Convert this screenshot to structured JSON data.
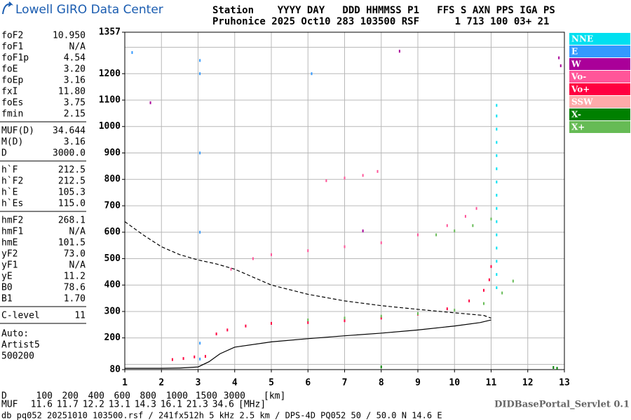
{
  "header": {
    "title": "Lowell GIRO Data Center",
    "line1": "Station    YYYY DAY   DDD HHMMSS P1   FFS S AXN PPS IGA PS",
    "line2": "Pruhonice 2025 Oct10 283 103500 RSF      1 713 100 03+ 21"
  },
  "params": {
    "groups": [
      {
        "rows": [
          [
            "foF2",
            "10.950"
          ],
          [
            "foF1",
            "N/A"
          ],
          [
            "foF1p",
            "4.54"
          ],
          [
            "foE",
            "3.20"
          ],
          [
            "foEp",
            "3.16"
          ],
          [
            "fxI",
            "11.80"
          ],
          [
            "foEs",
            "3.75"
          ],
          [
            "fmin",
            "2.15"
          ]
        ]
      },
      {
        "rows": [
          [
            "MUF(D)",
            "34.644"
          ],
          [
            "M(D)",
            "3.16"
          ],
          [
            "D",
            "3000.0"
          ]
        ]
      },
      {
        "rows": [
          [
            "h`F",
            "212.5"
          ],
          [
            "h`F2",
            "212.5"
          ],
          [
            "h`E",
            "105.3"
          ],
          [
            "h`Es",
            "115.0"
          ]
        ]
      },
      {
        "rows": [
          [
            "hmF2",
            "268.1"
          ],
          [
            "hmF1",
            "N/A"
          ],
          [
            "hmE",
            "101.5"
          ],
          [
            "yF2",
            "73.0"
          ],
          [
            "yF1",
            "N/A"
          ],
          [
            "yE",
            "11.2"
          ],
          [
            "B0",
            "78.6"
          ],
          [
            "B1",
            "1.70"
          ]
        ]
      },
      {
        "rows": [
          [
            "C-level",
            "11"
          ]
        ]
      }
    ],
    "auto": [
      "Auto:",
      "Artist5",
      "500200"
    ]
  },
  "distance_table": {
    "d_row": {
      "label": "D",
      "values": [
        "100",
        "200",
        "400",
        "600",
        "800",
        "1000",
        "1500",
        "3000"
      ],
      "unit": "[km]"
    },
    "muf_row": {
      "label": "MUF",
      "values": [
        "11.6",
        "11.7",
        "12.2",
        "13.1",
        "14.3",
        "16.1",
        "21.3",
        "34.6"
      ],
      "unit": "[MHz]"
    }
  },
  "servlet": "DIDBasePortal_Servlet 0.1",
  "footer": "db pq052 20251010 103500.rsf / 241fx512h 5 kHz 2.5 km / DPS-4D PQ052 50 / 50.0 N 14.6 E",
  "chart_data": {
    "type": "scatter",
    "xlim": [
      1,
      13
    ],
    "xticks": [
      1,
      2,
      3,
      4,
      5,
      6,
      7,
      8,
      9,
      10,
      11,
      12,
      13
    ],
    "ylim": [
      80,
      1357
    ],
    "yticks": [
      80,
      200,
      300,
      400,
      500,
      600,
      700,
      800,
      900,
      1000,
      1100,
      1200,
      1357
    ],
    "ygrid": [
      100,
      200,
      300,
      400,
      500,
      600,
      700,
      800,
      900,
      1000,
      1100,
      1200,
      1300
    ],
    "grid": true,
    "series": [
      {
        "name": "NNE",
        "color": "#00e0f0",
        "x": [
          11.15,
          11.15,
          11.15,
          11.15,
          11.15,
          11.15,
          11.15,
          11.15,
          11.15,
          11.15,
          11.15,
          11.15,
          11.15,
          11.15,
          11.15
        ],
        "values": [
          390,
          440,
          490,
          540,
          590,
          640,
          690,
          740,
          790,
          840,
          890,
          940,
          990,
          1040,
          1080
        ]
      },
      {
        "name": "E",
        "color": "#3399ff",
        "x": [
          3.05,
          3.05,
          3.05,
          3.05,
          3.05,
          3.05,
          1.2,
          6.1
        ],
        "values": [
          120,
          180,
          600,
          900,
          1200,
          1250,
          1280,
          1200
        ]
      },
      {
        "name": "W",
        "color": "#aa0099",
        "x": [
          1.7,
          12.85,
          12.9,
          8.5,
          7.5
        ],
        "values": [
          1090,
          1260,
          1230,
          1285,
          605
        ]
      },
      {
        "name": "Vo-",
        "color": "#ff5599",
        "x": [
          3.9,
          4.5,
          5,
          6,
          7,
          8,
          9,
          9.8,
          10.3,
          10.6,
          6.5,
          7,
          7.5,
          7.9
        ],
        "values": [
          460,
          500,
          515,
          530,
          545,
          560,
          590,
          625,
          660,
          690,
          795,
          805,
          815,
          830
        ]
      },
      {
        "name": "Vo+",
        "color": "#ff0040",
        "x": [
          2.3,
          2.6,
          2.9,
          3.2,
          3.5,
          3.8,
          4.3,
          5,
          6,
          7,
          8,
          9,
          9.8,
          10.4,
          10.8,
          10.95,
          11
        ],
        "values": [
          118,
          122,
          128,
          130,
          215,
          230,
          245,
          255,
          258,
          265,
          275,
          290,
          310,
          340,
          380,
          420,
          470
        ]
      },
      {
        "name": "SSW",
        "color": "#ffaaaa",
        "x": [],
        "values": []
      },
      {
        "name": "X-",
        "color": "#008000",
        "x": [
          12.8,
          12.7,
          8.0
        ],
        "values": [
          85,
          88,
          90
        ]
      },
      {
        "name": "X+",
        "color": "#66bb55",
        "x": [
          6,
          7,
          8,
          9,
          10,
          10.8,
          11.3,
          11.6,
          9.5,
          10,
          10.5,
          11
        ],
        "values": [
          268,
          275,
          282,
          292,
          305,
          330,
          370,
          415,
          590,
          605,
          625,
          650
        ]
      }
    ],
    "profiles": [
      {
        "color": "#000000",
        "dashed": false,
        "x": [
          1,
          2,
          2.5,
          3,
          3.3,
          3.6,
          4,
          5,
          6,
          7,
          8,
          9,
          10,
          10.7,
          11
        ],
        "values": [
          85,
          85,
          86,
          90,
          110,
          140,
          165,
          185,
          197,
          208,
          218,
          230,
          245,
          258,
          268
        ]
      },
      {
        "color": "#000000",
        "dashed": true,
        "x": [
          1,
          1.5,
          2,
          2.5,
          3,
          3.5,
          4,
          4.5,
          5,
          6,
          7,
          8,
          9,
          10,
          10.8,
          11
        ],
        "values": [
          640,
          590,
          545,
          515,
          495,
          480,
          460,
          430,
          400,
          365,
          340,
          322,
          308,
          295,
          285,
          275
        ]
      }
    ]
  }
}
